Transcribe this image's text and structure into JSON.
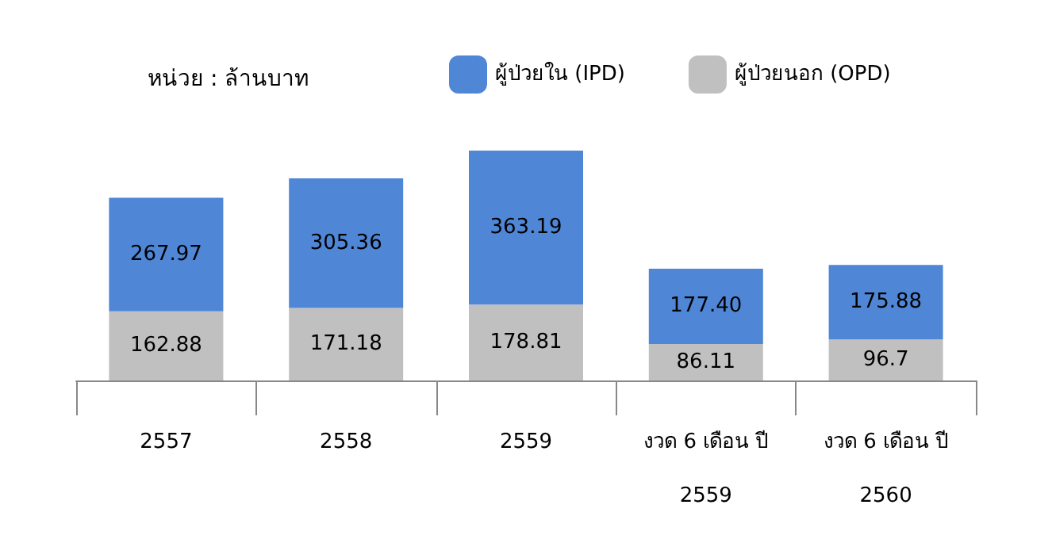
{
  "chart_data": {
    "type": "bar",
    "stacked": true,
    "legend": "top",
    "grid": false,
    "annotations": [
      "หน่วย : ล้านบาท"
    ],
    "categories": [
      "2557",
      "2558",
      "2559",
      "งวด 6 เดือน ปี\n2559",
      "งวด 6 เดือน ปี\n2560"
    ],
    "series": [
      {
        "name": "ผู้ป่วยนอก (OPD)",
        "color": "#c0c0c0",
        "values": [
          162.88,
          171.18,
          178.81,
          86.11,
          96.7
        ],
        "value_labels": [
          "162.88",
          "171.18",
          "178.81",
          "86.11",
          "96.7"
        ]
      },
      {
        "name": "ผู้ป่วยใน (IPD)",
        "color": "#4f86d6",
        "values": [
          267.97,
          305.36,
          363.19,
          177.4,
          175.88
        ],
        "value_labels": [
          "267.97",
          "305.36",
          "363.19",
          "177.40",
          "175.88"
        ]
      }
    ]
  }
}
